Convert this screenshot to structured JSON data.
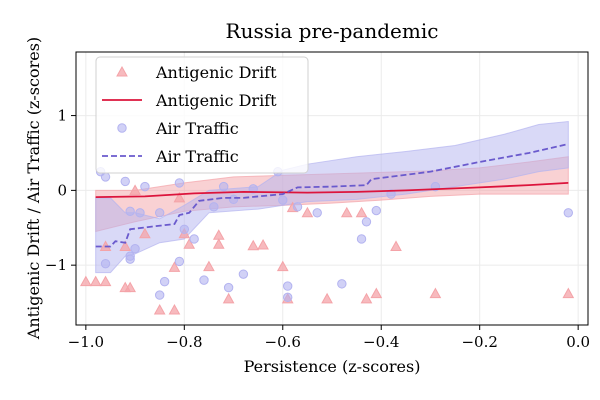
{
  "chart_data": {
    "type": "scatter",
    "title": "Russia pre-pandemic",
    "xlabel": "Persistence (z-scores)",
    "ylabel": "Antigenic Drift / Air Traffic (z-scores)",
    "xlim": [
      -1.02,
      0.02
    ],
    "ylim": [
      -1.8,
      1.85
    ],
    "xticks": [
      -1.0,
      -0.8,
      -0.6,
      -0.4,
      -0.2,
      0.0
    ],
    "xtick_labels": [
      "−1.0",
      "−0.8",
      "−0.6",
      "−0.4",
      "−0.2",
      "0.0"
    ],
    "yticks": [
      -1,
      0,
      1
    ],
    "ytick_labels": [
      "−1",
      "0",
      "1"
    ],
    "grid": true,
    "legend_position": "top-left",
    "legend": [
      {
        "label": "Antigenic Drift",
        "kind": "marker-triangle",
        "color": "#f4a3a8"
      },
      {
        "label": "Antigenic Drift",
        "kind": "line-solid",
        "color": "#dc143c"
      },
      {
        "label": "Air Traffic",
        "kind": "marker-circle",
        "color": "#b3b3f0"
      },
      {
        "label": "Air Traffic",
        "kind": "line-dashed",
        "color": "#6a5acd"
      }
    ],
    "series": [
      {
        "name": "Antigenic Drift",
        "kind": "scatter",
        "marker": "triangle",
        "color": "#f4a3a8",
        "points": [
          [
            -1.0,
            -1.22
          ],
          [
            -0.98,
            -1.22
          ],
          [
            -0.96,
            -1.22
          ],
          [
            -0.92,
            -1.3
          ],
          [
            -0.91,
            -1.3
          ],
          [
            -0.96,
            -0.75
          ],
          [
            -0.92,
            -0.75
          ],
          [
            -0.88,
            -0.58
          ],
          [
            -0.85,
            -1.6
          ],
          [
            -0.82,
            -1.6
          ],
          [
            -0.82,
            -1.03
          ],
          [
            -0.8,
            -0.58
          ],
          [
            -0.79,
            -0.72
          ],
          [
            -0.75,
            -1.02
          ],
          [
            -0.73,
            -0.6
          ],
          [
            -0.73,
            -0.72
          ],
          [
            -0.71,
            -1.45
          ],
          [
            -0.66,
            -0.74
          ],
          [
            -0.64,
            -0.73
          ],
          [
            -0.6,
            -1.02
          ],
          [
            -0.59,
            -1.45
          ],
          [
            -0.58,
            -0.23
          ],
          [
            -0.55,
            -0.3
          ],
          [
            -0.51,
            -1.45
          ],
          [
            -0.47,
            -0.3
          ],
          [
            -0.44,
            -0.3
          ],
          [
            -0.43,
            -1.45
          ],
          [
            -0.41,
            -1.38
          ],
          [
            -0.37,
            -0.75
          ],
          [
            -0.29,
            -1.38
          ],
          [
            -0.02,
            -1.38
          ],
          [
            -0.81,
            -0.1
          ],
          [
            -0.9,
            0.0
          ]
        ]
      },
      {
        "name": "Antigenic Drift",
        "kind": "line",
        "color": "#dc143c",
        "points": [
          [
            -0.98,
            -0.09
          ],
          [
            -0.88,
            -0.08
          ],
          [
            -0.78,
            -0.04
          ],
          [
            -0.68,
            -0.02
          ],
          [
            -0.55,
            -0.03
          ],
          [
            -0.45,
            -0.02
          ],
          [
            -0.35,
            0.0
          ],
          [
            -0.2,
            0.04
          ],
          [
            -0.1,
            0.07
          ],
          [
            -0.02,
            0.1
          ]
        ]
      },
      {
        "name": "Antigenic Drift CI",
        "kind": "band",
        "color": "#f4a3a8",
        "upper": [
          [
            -0.98,
            0.0
          ],
          [
            -0.9,
            0.0
          ],
          [
            -0.8,
            0.1
          ],
          [
            -0.7,
            0.18
          ],
          [
            -0.6,
            0.2
          ],
          [
            -0.5,
            0.22
          ],
          [
            -0.4,
            0.24
          ],
          [
            -0.3,
            0.26
          ],
          [
            -0.2,
            0.3
          ],
          [
            -0.1,
            0.38
          ],
          [
            -0.02,
            0.45
          ]
        ],
        "lower": [
          [
            -0.98,
            -0.55
          ],
          [
            -0.9,
            -0.42
          ],
          [
            -0.8,
            -0.28
          ],
          [
            -0.7,
            -0.22
          ],
          [
            -0.6,
            -0.2
          ],
          [
            -0.5,
            -0.17
          ],
          [
            -0.4,
            -0.13
          ],
          [
            -0.3,
            -0.08
          ],
          [
            -0.2,
            -0.05
          ],
          [
            -0.1,
            -0.05
          ],
          [
            -0.02,
            -0.05
          ]
        ]
      },
      {
        "name": "Air Traffic",
        "kind": "scatter",
        "marker": "circle",
        "color": "#b3b3f0",
        "points": [
          [
            -0.97,
            0.25
          ],
          [
            -0.96,
            -0.98
          ],
          [
            -0.96,
            0.18
          ],
          [
            -0.92,
            0.12
          ],
          [
            -0.91,
            -0.28
          ],
          [
            -0.89,
            -0.3
          ],
          [
            -0.9,
            -0.78
          ],
          [
            -0.91,
            -0.88
          ],
          [
            -0.91,
            -0.92
          ],
          [
            -0.88,
            0.05
          ],
          [
            -0.85,
            -0.3
          ],
          [
            -0.85,
            -1.4
          ],
          [
            -0.84,
            -1.22
          ],
          [
            -0.81,
            -0.95
          ],
          [
            -0.81,
            0.1
          ],
          [
            -0.8,
            -0.52
          ],
          [
            -0.78,
            -0.65
          ],
          [
            -0.76,
            -1.2
          ],
          [
            -0.74,
            -0.22
          ],
          [
            -0.72,
            0.05
          ],
          [
            -0.71,
            -1.3
          ],
          [
            -0.7,
            -0.12
          ],
          [
            -0.68,
            -1.12
          ],
          [
            -0.66,
            0.02
          ],
          [
            -0.61,
            0.25
          ],
          [
            -0.6,
            -0.13
          ],
          [
            -0.59,
            -1.28
          ],
          [
            -0.59,
            -1.43
          ],
          [
            -0.57,
            -0.22
          ],
          [
            -0.53,
            -0.3
          ],
          [
            -0.48,
            -1.25
          ],
          [
            -0.44,
            -0.65
          ],
          [
            -0.43,
            -0.42
          ],
          [
            -0.41,
            -0.27
          ],
          [
            -0.38,
            -0.05
          ],
          [
            -0.29,
            0.05
          ],
          [
            -0.02,
            -0.3
          ]
        ]
      },
      {
        "name": "Air Traffic",
        "kind": "line",
        "color": "#6a5acd",
        "points": [
          [
            -0.98,
            -0.75
          ],
          [
            -0.95,
            -0.75
          ],
          [
            -0.94,
            -0.68
          ],
          [
            -0.92,
            -0.7
          ],
          [
            -0.91,
            -0.52
          ],
          [
            -0.86,
            -0.48
          ],
          [
            -0.82,
            -0.45
          ],
          [
            -0.81,
            -0.33
          ],
          [
            -0.79,
            -0.3
          ],
          [
            -0.77,
            -0.14
          ],
          [
            -0.72,
            -0.1
          ],
          [
            -0.68,
            -0.1
          ],
          [
            -0.6,
            -0.05
          ],
          [
            -0.57,
            0.04
          ],
          [
            -0.5,
            0.05
          ],
          [
            -0.43,
            0.07
          ],
          [
            -0.42,
            0.15
          ],
          [
            -0.3,
            0.25
          ],
          [
            -0.2,
            0.38
          ],
          [
            -0.1,
            0.5
          ],
          [
            -0.02,
            0.62
          ]
        ]
      },
      {
        "name": "Air Traffic CI",
        "kind": "band",
        "color": "#b3b3f0",
        "upper": [
          [
            -0.98,
            -0.1
          ],
          [
            -0.95,
            -0.1
          ],
          [
            -0.92,
            -0.3
          ],
          [
            -0.9,
            -0.3
          ],
          [
            -0.85,
            -0.38
          ],
          [
            -0.8,
            -0.2
          ],
          [
            -0.75,
            0.0
          ],
          [
            -0.65,
            0.05
          ],
          [
            -0.6,
            0.27
          ],
          [
            -0.55,
            0.35
          ],
          [
            -0.45,
            0.45
          ],
          [
            -0.35,
            0.52
          ],
          [
            -0.25,
            0.6
          ],
          [
            -0.15,
            0.75
          ],
          [
            -0.08,
            0.88
          ],
          [
            -0.02,
            0.92
          ]
        ],
        "lower": [
          [
            -0.98,
            -1.1
          ],
          [
            -0.95,
            -1.1
          ],
          [
            -0.92,
            -0.88
          ],
          [
            -0.9,
            -0.85
          ],
          [
            -0.85,
            -0.7
          ],
          [
            -0.8,
            -0.65
          ],
          [
            -0.75,
            -0.3
          ],
          [
            -0.65,
            -0.25
          ],
          [
            -0.6,
            -0.2
          ],
          [
            -0.55,
            -0.15
          ],
          [
            -0.45,
            -0.12
          ],
          [
            -0.35,
            -0.05
          ],
          [
            -0.25,
            0.05
          ],
          [
            -0.15,
            0.15
          ],
          [
            -0.08,
            0.25
          ],
          [
            -0.02,
            0.3
          ]
        ]
      }
    ]
  }
}
